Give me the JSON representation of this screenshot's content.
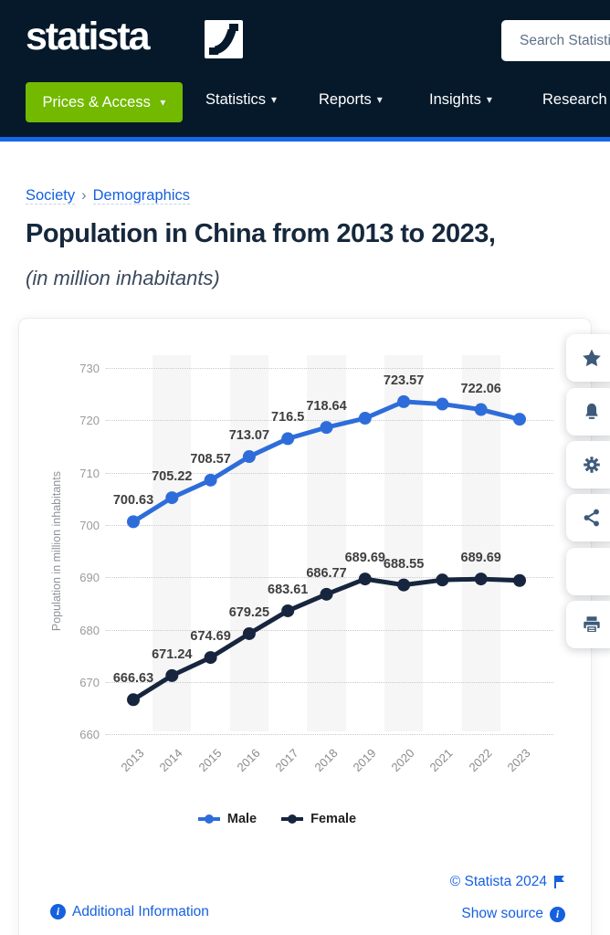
{
  "header": {
    "logo_text": "statista",
    "search": {
      "placeholder": "Search Statistics"
    },
    "nav": [
      {
        "label": "Prices & Access",
        "caret": "▾"
      },
      {
        "label": "Statistics",
        "caret": "▾"
      },
      {
        "label": "Reports",
        "caret": "▾"
      },
      {
        "label": "Insights",
        "caret": "▾"
      },
      {
        "label": "Research",
        "caret": ""
      }
    ]
  },
  "breadcrumb": {
    "items": [
      "Society",
      "Demographics"
    ],
    "separator": "›"
  },
  "page": {
    "title": "Population in China from 2013 to 2023,",
    "subtitle": "(in million inhabitants)"
  },
  "chart_data": {
    "type": "line",
    "title": "Population in China from 2013 to 2023, (in million inhabitants)",
    "categories": [
      "2013",
      "2014",
      "2015",
      "2016",
      "2017",
      "2018",
      "2019",
      "2020",
      "2021",
      "2022",
      "2023"
    ],
    "ylabel": "Population in million inhabitants",
    "ylim": [
      660,
      730
    ],
    "ytick_step": 10,
    "grid": "horizontal-dotted",
    "legend_position": "bottom",
    "series": [
      {
        "name": "Male",
        "color": "#2e6dd9",
        "values": [
          700.63,
          705.22,
          708.57,
          713.07,
          716.5,
          718.64,
          720.4,
          723.57,
          723.1,
          722.06,
          720.2
        ],
        "labels": [
          "700.63",
          "705.22",
          "708.57",
          "713.07",
          "716.5",
          "718.64",
          null,
          "723.57",
          null,
          "722.06",
          null
        ]
      },
      {
        "name": "Female",
        "color": "#17263e",
        "values": [
          666.63,
          671.24,
          674.69,
          679.25,
          683.61,
          686.77,
          689.69,
          688.55,
          689.5,
          689.69,
          689.4
        ],
        "labels": [
          "666.63",
          "671.24",
          "674.69",
          "679.25",
          "683.61",
          "686.77",
          "689.69",
          "688.55",
          null,
          "689.69",
          null
        ]
      }
    ]
  },
  "side_buttons": [
    "star-icon",
    "bell-icon",
    "gear-icon",
    "share-icon",
    "quote-icon",
    "print-icon"
  ],
  "footer": {
    "copyright": "© Statista 2024",
    "show_source": "Show source",
    "additional_info": "Additional Information"
  },
  "colors": {
    "header_bg": "#06192b",
    "accent_green": "#72b900",
    "accent_blue_bar": "#1767e8",
    "link_blue": "#1560e0",
    "title_navy": "#16283c",
    "male_line": "#2e6dd9",
    "female_line": "#17263e",
    "band_gray": "#f6f6f6"
  }
}
